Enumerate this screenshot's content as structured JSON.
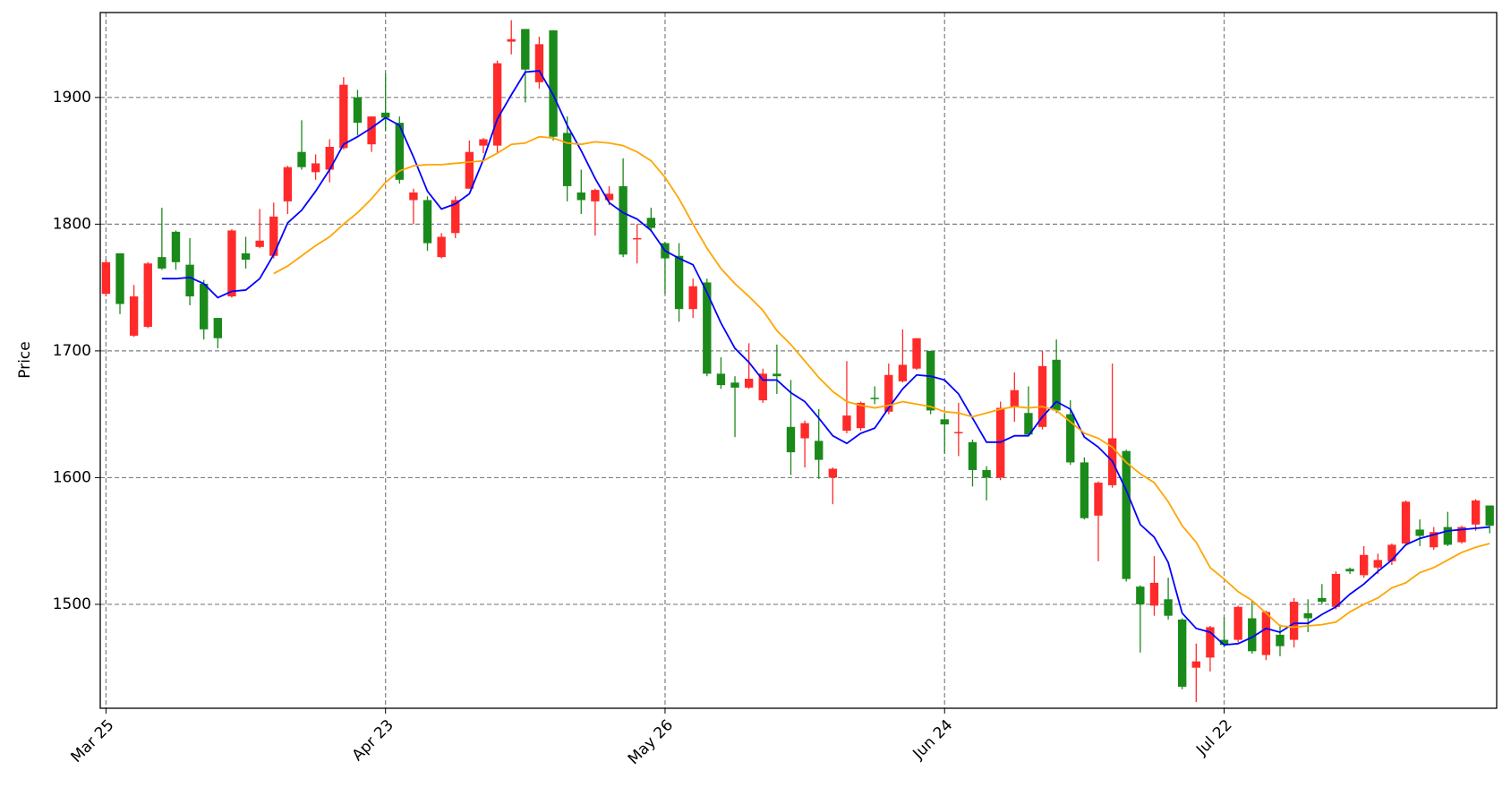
{
  "chart_data": {
    "type": "candlestick",
    "y_label": "Price",
    "up_color": "#ff2a2a",
    "down_color": "#1a8a1a",
    "grid": true,
    "xlim": [
      -0.41,
      99.5
    ],
    "xticks": [
      {
        "value": 0,
        "label": "Mar 25"
      },
      {
        "value": 20,
        "label": "Apr 23"
      },
      {
        "value": 40,
        "label": "May 26"
      },
      {
        "value": 60,
        "label": "Jun 24"
      },
      {
        "value": 80,
        "label": "Jul 22"
      }
    ],
    "ylim": [
      1418,
      1967
    ],
    "yticks": [
      1500,
      1600,
      1700,
      1800,
      1900
    ],
    "open": [
      1745,
      1777,
      1712,
      1719,
      1774,
      1794,
      1768,
      1753,
      1726,
      1743,
      1777,
      1782,
      1775,
      1818,
      1857,
      1841,
      1843,
      1860,
      1900,
      1863,
      1888,
      1880,
      1819,
      1819,
      1774,
      1793,
      1828,
      1862,
      1862,
      1944,
      1954,
      1912,
      1953,
      1872,
      1825,
      1818,
      1819,
      1830,
      1788,
      1805,
      1785,
      1775,
      1733,
      1754,
      1682,
      1675,
      1671,
      1661,
      1682,
      1640,
      1631,
      1629,
      1600,
      1637,
      1639,
      1663,
      1652,
      1676,
      1686,
      1700,
      1646,
      1635,
      1628,
      1606,
      1600,
      1656,
      1651,
      1640,
      1693,
      1650,
      1612,
      1570,
      1594,
      1621,
      1514,
      1499,
      1504,
      1488,
      1450,
      1458,
      1472,
      1472,
      1489,
      1460,
      1476,
      1472,
      1493,
      1505,
      1498,
      1528,
      1523,
      1529,
      1534,
      1548,
      1559,
      1545,
      1561,
      1549,
      1563,
      1578
    ],
    "high": [
      1772,
      1777,
      1752,
      1770,
      1813,
      1795,
      1789,
      1756,
      1726,
      1796,
      1790,
      1812,
      1817,
      1846,
      1882,
      1855,
      1867,
      1916,
      1906,
      1885,
      1919,
      1885,
      1828,
      1822,
      1793,
      1822,
      1866,
      1868,
      1929,
      1961,
      1954,
      1948,
      1953,
      1885,
      1843,
      1828,
      1830,
      1852,
      1800,
      1813,
      1786,
      1785,
      1757,
      1757,
      1695,
      1680,
      1706,
      1686,
      1705,
      1677,
      1645,
      1654,
      1608,
      1692,
      1660,
      1672,
      1690,
      1717,
      1710,
      1700,
      1651,
      1659,
      1630,
      1609,
      1660,
      1683,
      1672,
      1700,
      1709,
      1661,
      1616,
      1597,
      1690,
      1622,
      1515,
      1538,
      1521,
      1489,
      1469,
      1483,
      1490,
      1499,
      1503,
      1495,
      1484,
      1505,
      1504,
      1516,
      1526,
      1529,
      1546,
      1540,
      1548,
      1582,
      1567,
      1561,
      1573,
      1562,
      1583,
      1578
    ],
    "low": [
      1743,
      1729,
      1711,
      1718,
      1764,
      1764,
      1736,
      1709,
      1702,
      1742,
      1765,
      1781,
      1773,
      1808,
      1843,
      1835,
      1833,
      1859,
      1870,
      1857,
      1874,
      1832,
      1800,
      1779,
      1773,
      1789,
      1828,
      1856,
      1856,
      1934,
      1896,
      1907,
      1866,
      1818,
      1808,
      1791,
      1815,
      1774,
      1769,
      1794,
      1745,
      1723,
      1726,
      1680,
      1670,
      1632,
      1670,
      1659,
      1666,
      1602,
      1608,
      1599,
      1579,
      1635,
      1637,
      1658,
      1650,
      1675,
      1685,
      1650,
      1619,
      1617,
      1593,
      1582,
      1598,
      1644,
      1633,
      1638,
      1651,
      1610,
      1567,
      1534,
      1592,
      1518,
      1462,
      1491,
      1488,
      1433,
      1423,
      1447,
      1466,
      1470,
      1461,
      1456,
      1459,
      1466,
      1478,
      1500,
      1496,
      1524,
      1521,
      1524,
      1531,
      1546,
      1546,
      1543,
      1546,
      1548,
      1558,
      1556
    ],
    "close": [
      1770,
      1737,
      1743,
      1769,
      1765,
      1770,
      1743,
      1717,
      1710,
      1795,
      1772,
      1787,
      1806,
      1845,
      1845,
      1848,
      1861,
      1910,
      1880,
      1885,
      1884,
      1835,
      1825,
      1785,
      1790,
      1819,
      1857,
      1867,
      1927,
      1946,
      1922,
      1942,
      1869,
      1830,
      1819,
      1827,
      1824,
      1776,
      1789,
      1797,
      1773,
      1733,
      1751,
      1682,
      1673,
      1671,
      1678,
      1682,
      1680,
      1620,
      1643,
      1614,
      1607,
      1649,
      1659,
      1662,
      1681,
      1689,
      1710,
      1653,
      1642,
      1636,
      1606,
      1600,
      1655,
      1669,
      1634,
      1688,
      1653,
      1612,
      1568,
      1596,
      1631,
      1520,
      1500,
      1517,
      1491,
      1435,
      1455,
      1482,
      1468,
      1498,
      1463,
      1494,
      1467,
      1502,
      1489,
      1502,
      1524,
      1526,
      1539,
      1535,
      1547,
      1581,
      1554,
      1557,
      1547,
      1561,
      1582,
      1562
    ],
    "series": [
      {
        "color": "#0000ff",
        "values": [
          null,
          null,
          null,
          null,
          1757,
          1757,
          1758,
          1753,
          1742,
          1747,
          1748,
          1757,
          1776,
          1801,
          1811,
          1826,
          1843,
          1863,
          1869,
          1876,
          1884,
          1878,
          1853,
          1826,
          1812,
          1816,
          1824,
          1851,
          1883,
          1902,
          1920,
          1921,
          1902,
          1878,
          1858,
          1836,
          1817,
          1809,
          1804,
          1795,
          1779,
          1773,
          1768,
          1746,
          1722,
          1702,
          1691,
          1677,
          1677,
          1667,
          1660,
          1647,
          1633,
          1627,
          1635,
          1639,
          1655,
          1670,
          1681,
          1680,
          1677,
          1666,
          1647,
          1628,
          1628,
          1633,
          1633,
          1648,
          1660,
          1654,
          1632,
          1624,
          1613,
          1590,
          1563,
          1553,
          1533,
          1493,
          1481,
          1478,
          1468,
          1469,
          1474,
          1481,
          1478,
          1485,
          1485,
          1492,
          1498,
          1508,
          1516,
          1526,
          1535,
          1547,
          1552,
          1555,
          1558,
          1559,
          1560,
          1561
        ]
      },
      {
        "color": "#ffa500",
        "values": [
          null,
          null,
          null,
          null,
          null,
          null,
          null,
          null,
          null,
          null,
          null,
          null,
          1761,
          1767,
          1775,
          1783,
          1790,
          1800,
          1809,
          1820,
          1833,
          1842,
          1846,
          1847,
          1847,
          1848,
          1849,
          1850,
          1856,
          1863,
          1864,
          1869,
          1868,
          1864,
          1863,
          1865,
          1864,
          1862,
          1857,
          1850,
          1837,
          1820,
          1800,
          1781,
          1765,
          1753,
          1743,
          1732,
          1716,
          1705,
          1692,
          1679,
          1668,
          1660,
          1657,
          1655,
          1657,
          1660,
          1658,
          1656,
          1652,
          1651,
          1648,
          1651,
          1654,
          1656,
          1655,
          1656,
          1653,
          1644,
          1635,
          1631,
          1624,
          1612,
          1603,
          1596,
          1581,
          1562,
          1549,
          1529,
          1520,
          1510,
          1503,
          1493,
          1483,
          1482,
          1483,
          1484,
          1486,
          1494,
          1500,
          1505,
          1513,
          1517,
          1525,
          1529,
          1535,
          1541,
          1545,
          1548
        ]
      }
    ]
  }
}
